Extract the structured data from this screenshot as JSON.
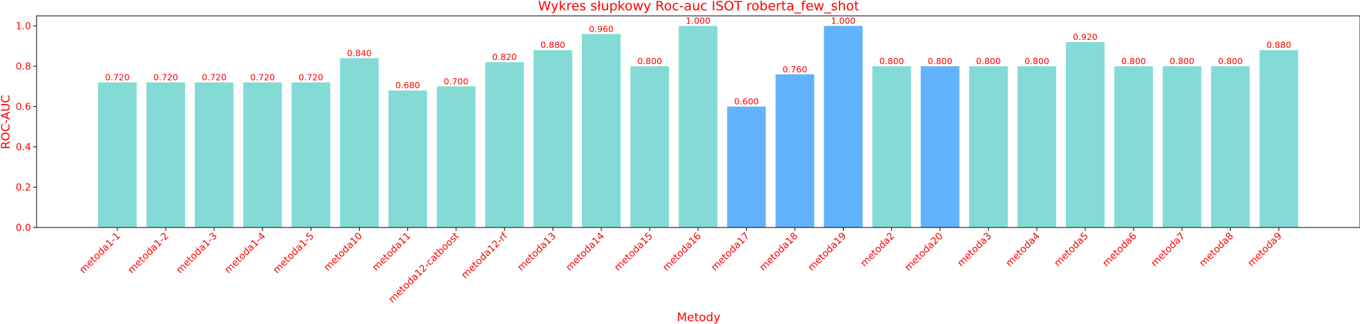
{
  "colors": {
    "text": "#ff0000",
    "axis": "#000000",
    "bar_default": "#84dbd6",
    "bar_highlight": "#62b2fe"
  },
  "chart_data": {
    "type": "bar",
    "title": "Wykres słupkowy Roc-auc ISOT roberta_few_shot",
    "xlabel": "Metody",
    "ylabel": "ROC-AUC",
    "ylim": [
      0,
      1.05
    ],
    "yticks": [
      "0.0",
      "0.2",
      "0.4",
      "0.6",
      "0.8",
      "1.0"
    ],
    "ytick_values": [
      0,
      0.2,
      0.4,
      0.6,
      0.8,
      1.0
    ],
    "grid": false,
    "categories": [
      "metoda1-1",
      "metoda1-2",
      "metoda1-3",
      "metoda1-4",
      "metoda1-5",
      "metoda10",
      "metoda11",
      "metoda12-catboost",
      "metoda12-rf",
      "metoda13",
      "metoda14",
      "metoda15",
      "metoda16",
      "metoda17",
      "metoda18",
      "metoda19",
      "metoda2",
      "metoda20",
      "metoda3",
      "metoda4",
      "metoda5",
      "metoda6",
      "metoda7",
      "metoda8",
      "metoda9"
    ],
    "values": [
      0.72,
      0.72,
      0.72,
      0.72,
      0.72,
      0.84,
      0.68,
      0.7,
      0.82,
      0.88,
      0.96,
      0.8,
      1.0,
      0.6,
      0.76,
      1.0,
      0.8,
      0.8,
      0.8,
      0.8,
      0.92,
      0.8,
      0.8,
      0.8,
      0.88
    ],
    "value_labels": [
      "0.720",
      "0.720",
      "0.720",
      "0.720",
      "0.720",
      "0.840",
      "0.680",
      "0.700",
      "0.820",
      "0.880",
      "0.960",
      "0.800",
      "1.000",
      "0.600",
      "0.760",
      "1.000",
      "0.800",
      "0.800",
      "0.800",
      "0.800",
      "0.920",
      "0.800",
      "0.800",
      "0.800",
      "0.880"
    ],
    "highlighted": [
      "metoda17",
      "metoda18",
      "metoda19",
      "metoda20"
    ]
  }
}
